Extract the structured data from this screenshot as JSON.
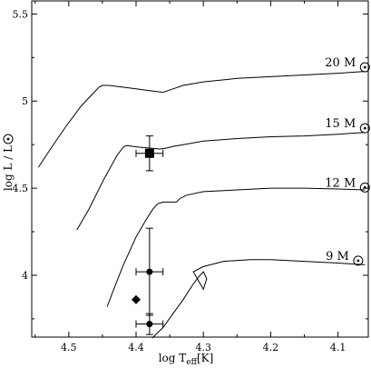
{
  "chart_data": {
    "type": "line",
    "title": "",
    "xlabel": "log T",
    "xlabel_subscript": "eff",
    "xlabel_unit": "[K]",
    "ylabel": "log L / L",
    "xlim": [
      4.555,
      4.055
    ],
    "ylim": [
      3.645,
      5.575
    ],
    "x_inverted": true,
    "grid": false,
    "xticks": [
      {
        "value": 4.5,
        "label": "4.5"
      },
      {
        "value": 4.4,
        "label": "4.4"
      },
      {
        "value": 4.3,
        "label": "4.3"
      },
      {
        "value": 4.2,
        "label": "4.2"
      },
      {
        "value": 4.1,
        "label": "4.1"
      }
    ],
    "yticks": [
      {
        "value": 4.0,
        "label": "4"
      },
      {
        "value": 4.5,
        "label": "4.5"
      },
      {
        "value": 5.0,
        "label": "5"
      },
      {
        "value": 5.5,
        "label": "5.5"
      }
    ],
    "series": [
      {
        "name": "20 M",
        "x": [
          4.545,
          4.528,
          4.505,
          4.482,
          4.465,
          4.455,
          4.45,
          4.44,
          4.42,
          4.4,
          4.38,
          4.36,
          4.345,
          4.33,
          4.3,
          4.25,
          4.2,
          4.15,
          4.1,
          4.06
        ],
        "y": [
          4.62,
          4.72,
          4.85,
          4.97,
          5.04,
          5.08,
          5.09,
          5.09,
          5.08,
          5.07,
          5.06,
          5.05,
          5.07,
          5.09,
          5.11,
          5.13,
          5.14,
          5.15,
          5.16,
          5.17
        ]
      },
      {
        "name": "15 M",
        "x": [
          4.488,
          4.47,
          4.448,
          4.428,
          4.418,
          4.412,
          4.405,
          4.395,
          4.38,
          4.365,
          4.355,
          4.345,
          4.33,
          4.3,
          4.25,
          4.2,
          4.15,
          4.1,
          4.06
        ],
        "y": [
          4.26,
          4.38,
          4.55,
          4.69,
          4.74,
          4.745,
          4.74,
          4.735,
          4.73,
          4.725,
          4.73,
          4.74,
          4.75,
          4.77,
          4.785,
          4.795,
          4.8,
          4.81,
          4.82
        ]
      },
      {
        "name": "12 M",
        "x": [
          4.443,
          4.435,
          4.42,
          4.4,
          4.385,
          4.375,
          4.368,
          4.36,
          4.35,
          4.34,
          4.335,
          4.325,
          4.3,
          4.25,
          4.2,
          4.15,
          4.1,
          4.06
        ],
        "y": [
          3.82,
          3.9,
          4.05,
          4.22,
          4.32,
          4.38,
          4.41,
          4.42,
          4.42,
          4.42,
          4.44,
          4.46,
          4.48,
          4.49,
          4.5,
          4.5,
          4.495,
          4.49
        ]
      },
      {
        "name": "9 M",
        "x": [
          4.376,
          4.36,
          4.345,
          4.33,
          4.315,
          4.305,
          4.3,
          4.295,
          4.3,
          4.315,
          4.3,
          4.27,
          4.23,
          4.2,
          4.15,
          4.1,
          4.06
        ],
        "y": [
          3.64,
          3.7,
          3.78,
          3.86,
          3.95,
          4.0,
          4.02,
          3.98,
          3.92,
          4.02,
          4.05,
          4.08,
          4.09,
          4.09,
          4.08,
          4.07,
          4.06
        ]
      }
    ],
    "points": [
      {
        "marker": "square",
        "x": 4.38,
        "y": 4.7,
        "xerr": 0.02,
        "yerr_low": 0.1,
        "yerr_high": 0.1
      },
      {
        "marker": "circle",
        "x": 4.38,
        "y": 4.02,
        "xerr": 0.02,
        "yerr_low": 0.25,
        "yerr_high": 0.25
      },
      {
        "marker": "circle",
        "x": 4.38,
        "y": 3.72,
        "xerr": 0.02,
        "yerr_low": 0.06,
        "yerr_high": 0.06
      },
      {
        "marker": "diamond",
        "x": 4.4,
        "y": 3.86
      }
    ],
    "annotations": [
      {
        "text": "20 M",
        "x": 4.06,
        "y": 5.22
      },
      {
        "text": "15 M",
        "x": 4.06,
        "y": 4.87
      },
      {
        "text": "12 M",
        "x": 4.06,
        "y": 4.53
      },
      {
        "text": "9 M",
        "x": 4.07,
        "y": 4.11
      }
    ]
  }
}
